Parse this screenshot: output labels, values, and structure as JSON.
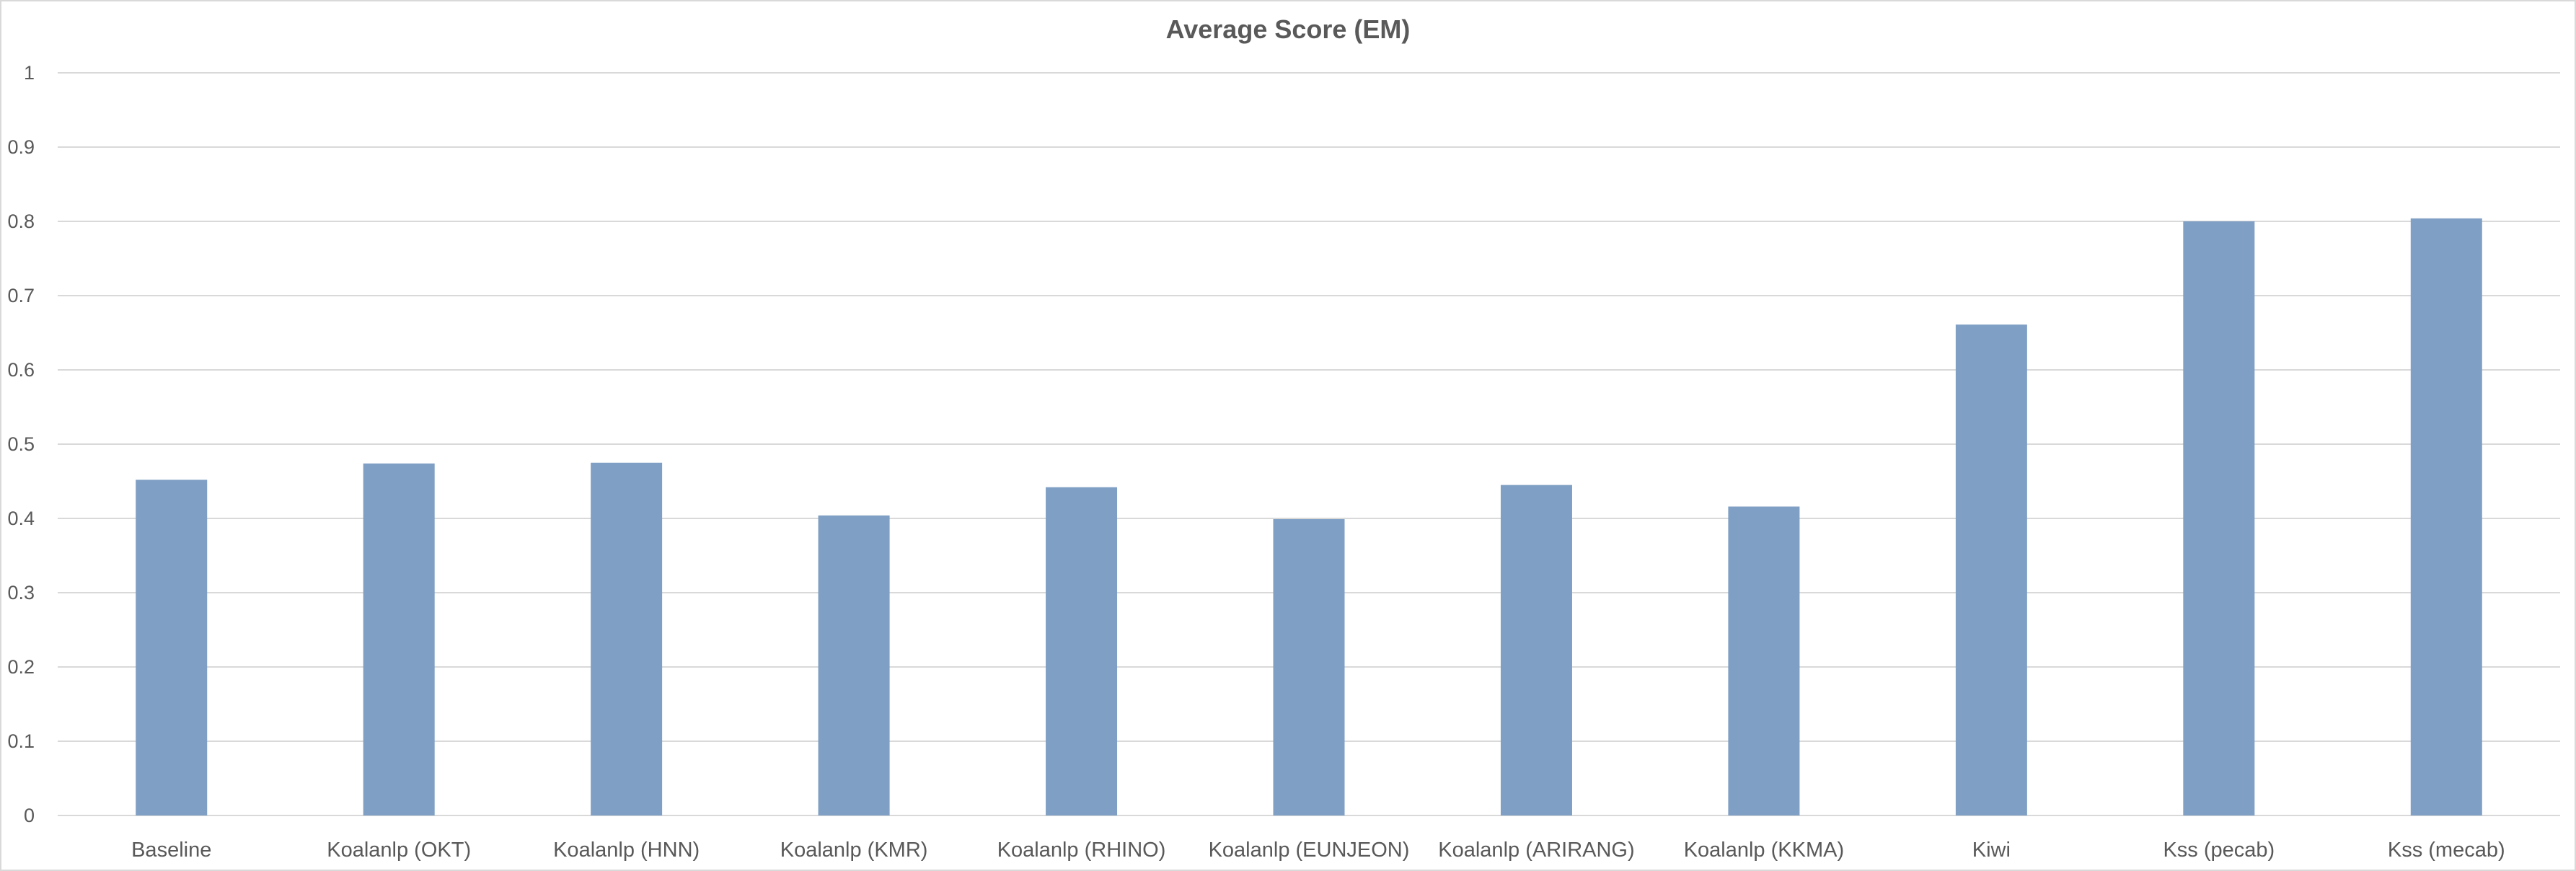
{
  "chart_data": {
    "type": "bar",
    "title": "Average Score (EM)",
    "xlabel": "",
    "ylabel": "",
    "categories": [
      "Baseline",
      "Koalanlp (OKT)",
      "Koalanlp (HNN)",
      "Koalanlp (KMR)",
      "Koalanlp (RHINO)",
      "Koalanlp (EUNJEON)",
      "Koalanlp (ARIRANG)",
      "Koalanlp (KKMA)",
      "Kiwi",
      "Kss (pecab)",
      "Kss (mecab)"
    ],
    "values": [
      0.452,
      0.474,
      0.475,
      0.404,
      0.442,
      0.399,
      0.445,
      0.416,
      0.661,
      0.8,
      0.804
    ],
    "ylim": [
      0,
      1
    ],
    "yticks": [
      "0",
      "0.1",
      "0.2",
      "0.3",
      "0.4",
      "0.5",
      "0.6",
      "0.7",
      "0.8",
      "0.9",
      "1"
    ],
    "grid": true,
    "legend": "none",
    "bar_color": "#7f9fc4",
    "gridline_color": "#d9d9d9",
    "text_color": "#595959"
  }
}
